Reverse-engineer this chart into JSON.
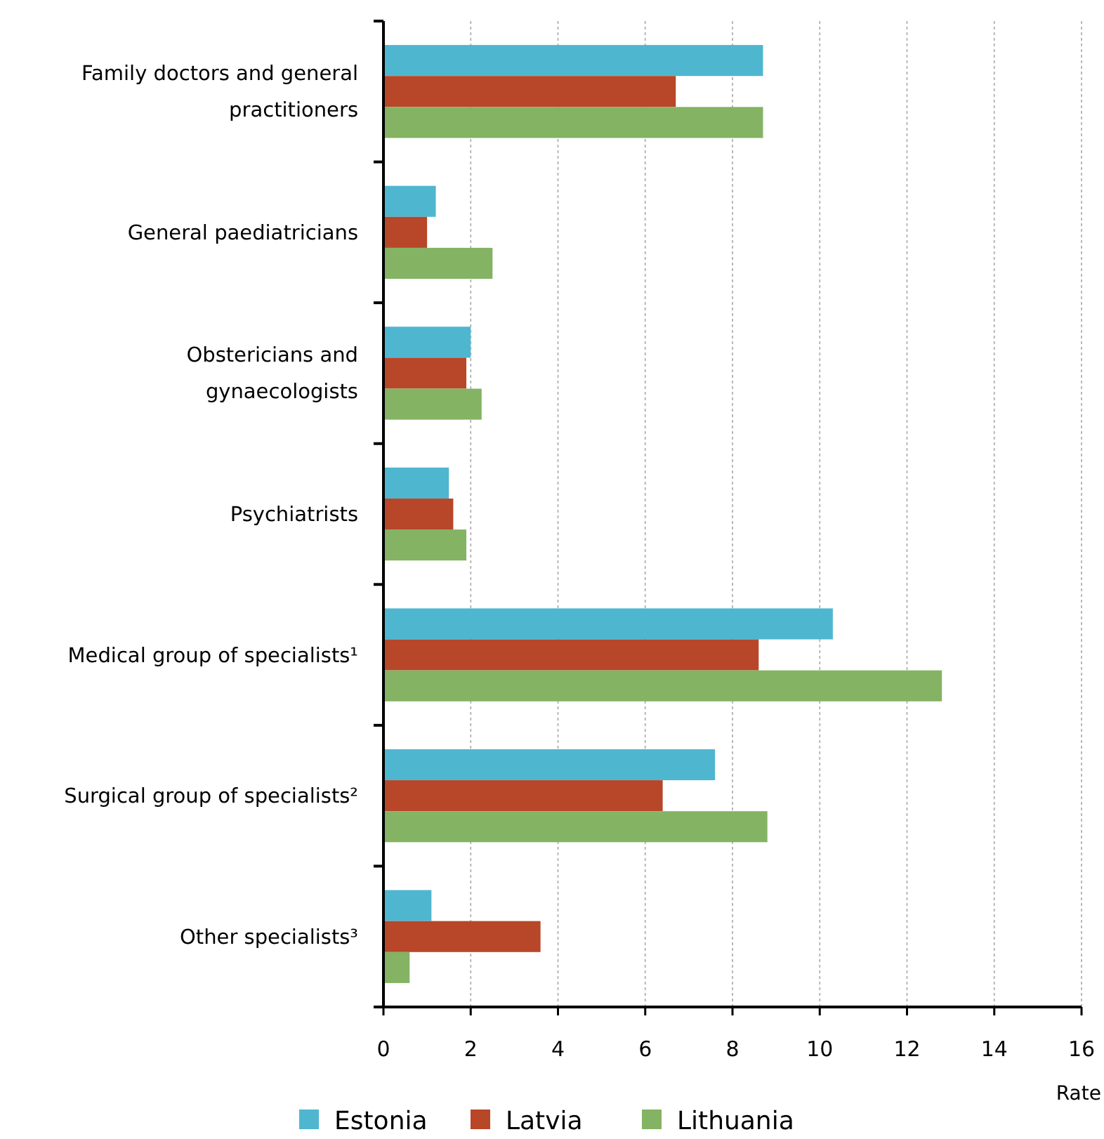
{
  "chart_data": {
    "type": "bar",
    "orientation": "horizontal",
    "xlabel": "Rate",
    "categories": [
      "Family doctors and general practitioners",
      "General paediatricians",
      "Obstericians and gynaecologists",
      "Psychiatrists",
      "Medical group of specialists¹",
      "Surgical group of specialists²",
      "Other specialists³"
    ],
    "series": [
      {
        "name": "Estonia",
        "color": "#4fb6d0",
        "values": [
          8.7,
          1.2,
          2.0,
          1.5,
          10.3,
          7.6,
          1.1
        ]
      },
      {
        "name": "Latvia",
        "color": "#b84628",
        "values": [
          6.7,
          1.0,
          1.9,
          1.6,
          8.6,
          6.4,
          3.6
        ]
      },
      {
        "name": "Lithuania",
        "color": "#83b363",
        "values": [
          8.7,
          2.5,
          2.25,
          1.9,
          12.8,
          8.8,
          0.6
        ]
      }
    ],
    "xlim": [
      0,
      16
    ],
    "xticks": [
      0,
      2,
      4,
      6,
      8,
      10,
      12,
      14,
      16
    ],
    "grid": "x",
    "legend": "bottom"
  }
}
